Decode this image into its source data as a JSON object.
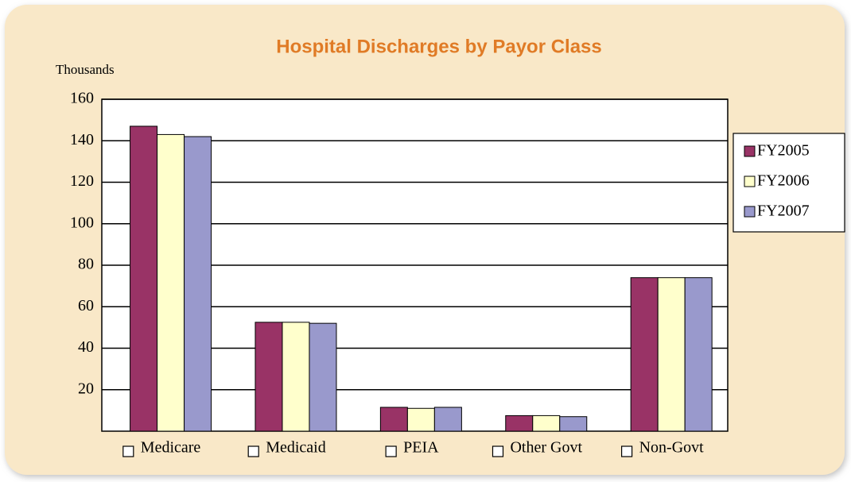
{
  "chart_data": {
    "type": "bar",
    "title": "Hospital Discharges by Payor Class",
    "y_axis_label": "Thousands",
    "categories": [
      "Medicare",
      "Medicaid",
      "PEIA",
      "Other Govt",
      "Non-Govt"
    ],
    "series": [
      {
        "name": "FY2005",
        "color": "#993366",
        "values": [
          147,
          52.5,
          11.5,
          7.5,
          74
        ]
      },
      {
        "name": "FY2006",
        "color": "#ffffcc",
        "values": [
          143,
          52.5,
          11,
          7.5,
          74
        ]
      },
      {
        "name": "FY2007",
        "color": "#9999cc",
        "values": [
          142,
          52,
          11.5,
          7,
          74
        ]
      }
    ],
    "ylim": [
      0,
      160
    ],
    "yticks": [
      20,
      40,
      60,
      80,
      100,
      120,
      140,
      160
    ],
    "grid": true,
    "legend": "right"
  }
}
